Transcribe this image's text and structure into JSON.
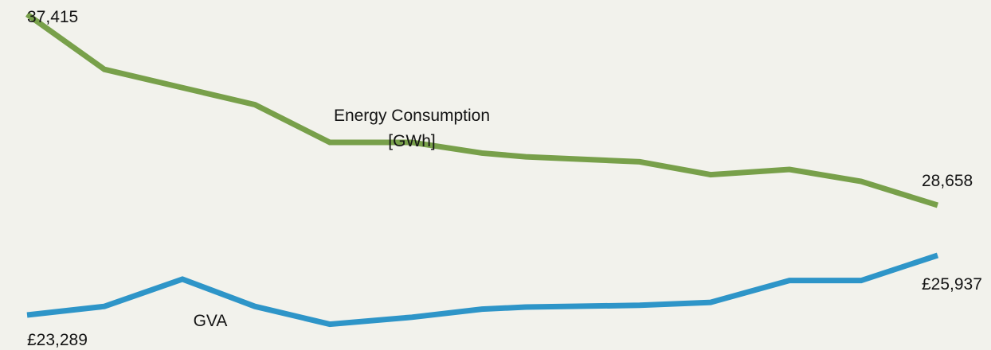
{
  "chart_data": {
    "type": "line",
    "title": "",
    "xlabel": "",
    "ylabel": "",
    "x": [
      1,
      2,
      3,
      4,
      5,
      6,
      7,
      8,
      9,
      10,
      11,
      12,
      13
    ],
    "series": [
      {
        "name": "Energy Consumption [GWh]",
        "color": "#78a04a",
        "label_lines": [
          "Energy Consumption",
          "[GWh]"
        ],
        "start_label": "37,415",
        "end_label": "28,658",
        "values": [
          37415,
          34890,
          34050,
          33270,
          31540,
          31540,
          31050,
          30880,
          30650,
          30060,
          30300,
          29750,
          28658
        ]
      },
      {
        "name": "GVA",
        "color": "#2e95c8",
        "label_lines": [
          "GVA"
        ],
        "start_label": "£23,289",
        "end_label": "£25,937",
        "values": [
          23289,
          23670,
          24880,
          23670,
          22880,
          23190,
          23550,
          23640,
          23720,
          23850,
          24820,
          24820,
          25937
        ]
      }
    ]
  }
}
